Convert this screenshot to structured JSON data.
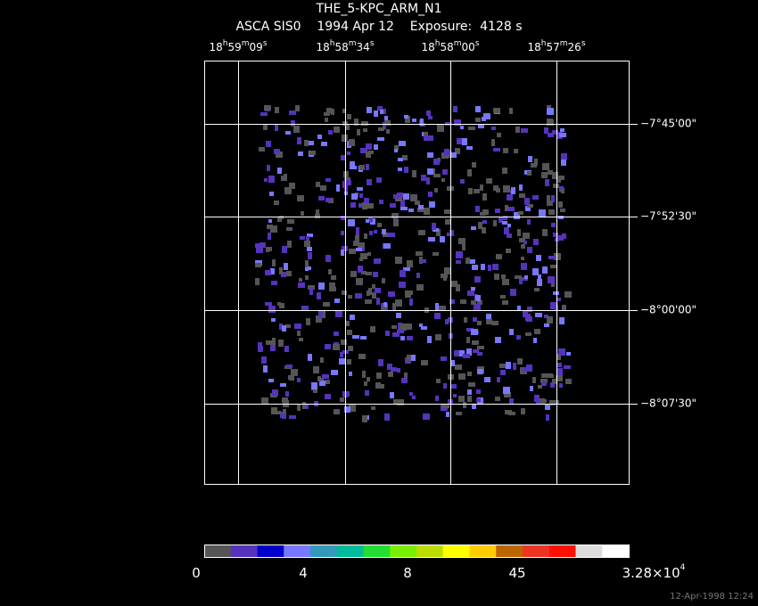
{
  "header": {
    "title": "THE_5-KPC_ARM_N1",
    "subtitle": "ASCA SIS0    1994 Apr 12    Exposure:  4128 s"
  },
  "ra_labels": [
    [
      "18",
      "h",
      "59",
      "m",
      "09",
      "s"
    ],
    [
      "18",
      "h",
      "58",
      "m",
      "34",
      "s"
    ],
    [
      "18",
      "h",
      "58",
      "m",
      "00",
      "s"
    ],
    [
      "18",
      "h",
      "57",
      "m",
      "26",
      "s"
    ]
  ],
  "dec_labels": [
    "−7°45'00\"",
    "−7°52'30\"",
    "−8°00'00\"",
    "−8°07'30\""
  ],
  "colorbar": {
    "colors": [
      "#555555",
      "#5533bb",
      "#0000cc",
      "#7777ff",
      "#3399bb",
      "#00bb99",
      "#22dd33",
      "#77ee00",
      "#bbdd00",
      "#ffff00",
      "#ffcc00",
      "#bb6600",
      "#ee3322",
      "#ff1100",
      "#dddddd",
      "#ffffff"
    ],
    "labels": [
      [
        "0"
      ],
      [
        "4"
      ],
      [
        "8"
      ],
      [
        "45"
      ],
      [
        "3.28×10",
        "4"
      ]
    ]
  },
  "footer": "12-Apr-1998 12:24"
}
